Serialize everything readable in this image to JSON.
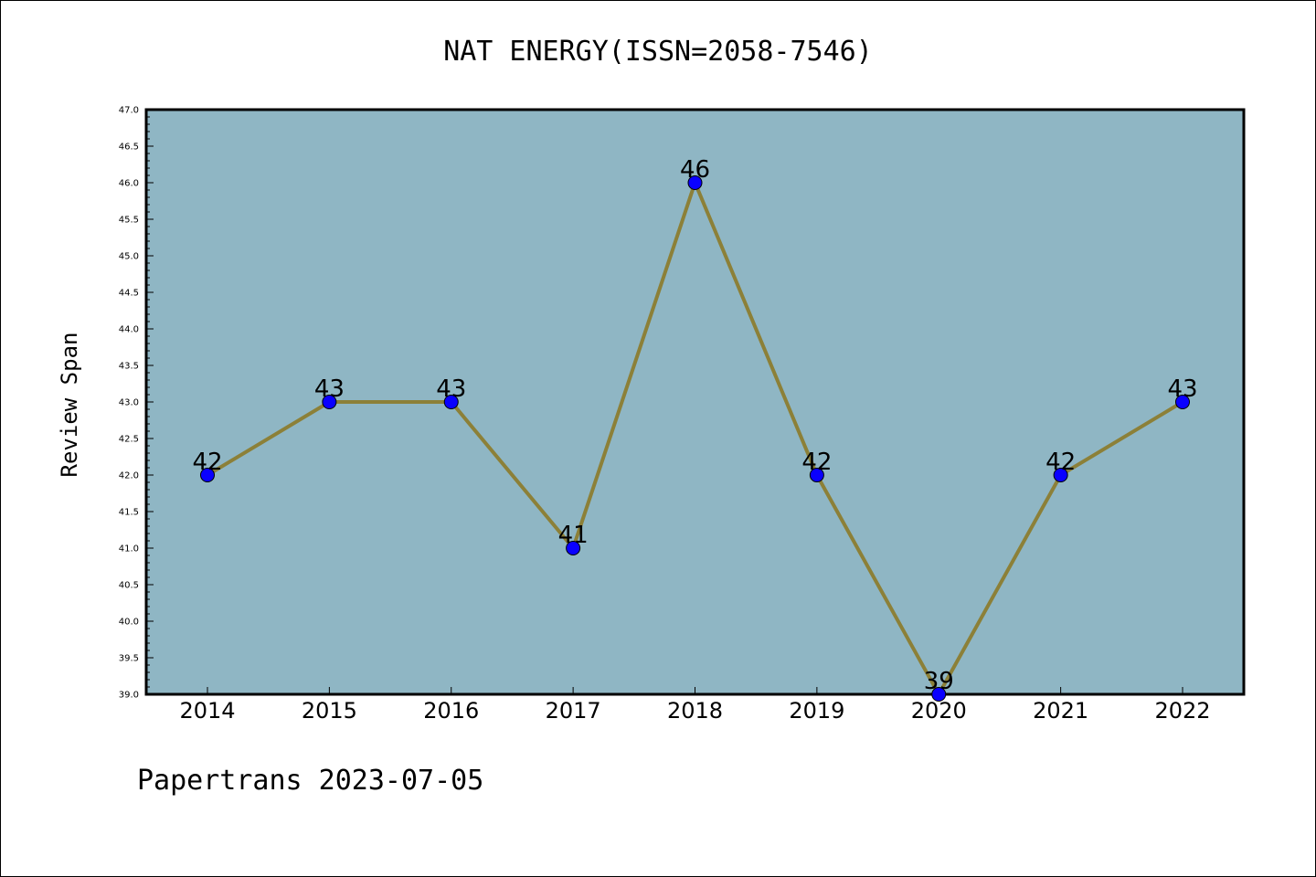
{
  "chart_data": {
    "type": "line",
    "title": "NAT ENERGY(ISSN=2058-7546)",
    "xlabel": "",
    "ylabel": "Review Span",
    "categories": [
      "2014",
      "2015",
      "2016",
      "2017",
      "2018",
      "2019",
      "2020",
      "2021",
      "2022"
    ],
    "series": [
      {
        "values": [
          42,
          43,
          43,
          41,
          46,
          42,
          39,
          42,
          43
        ]
      }
    ],
    "data_labels": [
      "42",
      "43",
      "43",
      "41",
      "46",
      "42",
      "39",
      "42",
      "43"
    ],
    "ylim": [
      39.0,
      47.0
    ],
    "yticks": [
      "39.0",
      "39.5",
      "40.0",
      "40.5",
      "41.0",
      "41.5",
      "42.0",
      "42.5",
      "43.0",
      "43.5",
      "44.0",
      "44.5",
      "45.0",
      "45.5",
      "46.0",
      "46.5",
      "47.0"
    ],
    "grid": false,
    "colors": {
      "plot_background": "#8fb6c4",
      "line": "#8c8038",
      "marker": "#0a00ff"
    }
  },
  "footer": "Papertrans 2023-07-05"
}
